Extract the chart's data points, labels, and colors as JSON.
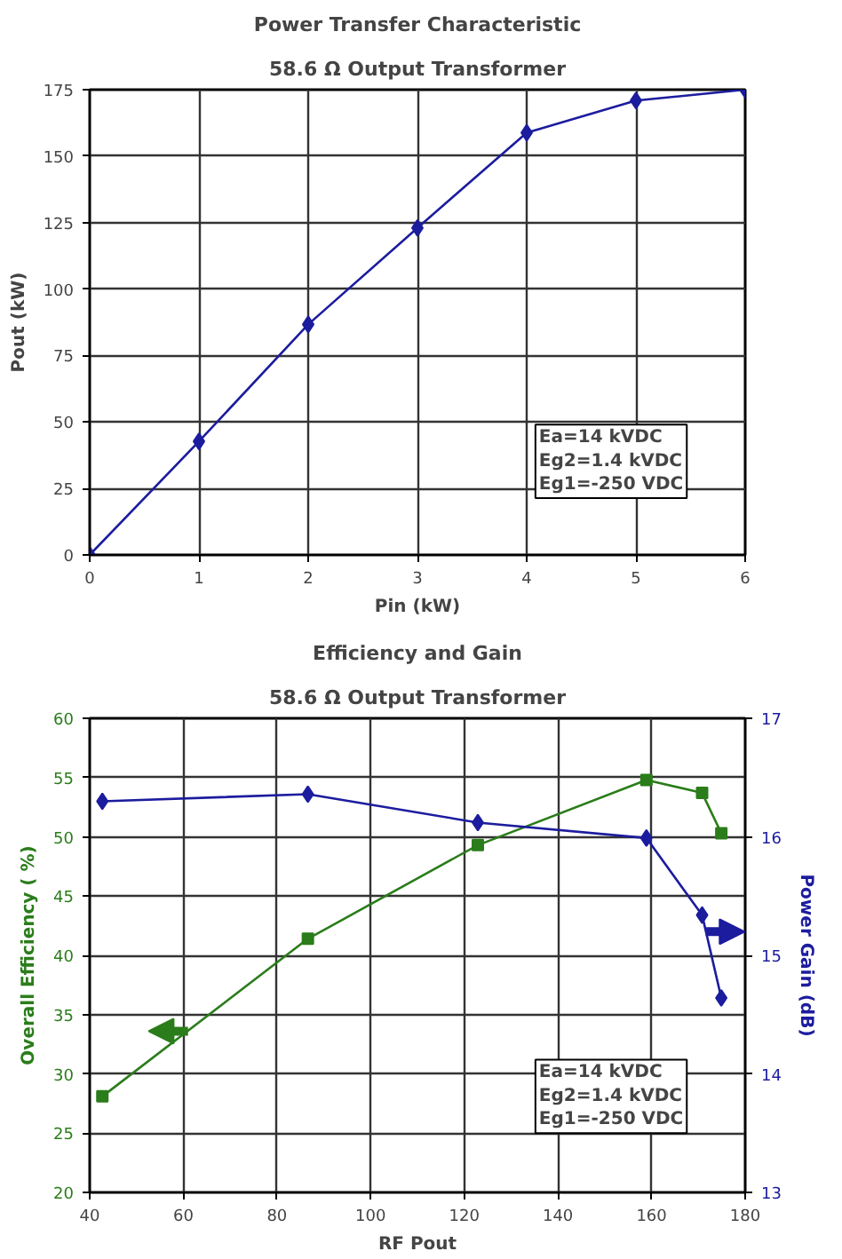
{
  "chart_data": [
    {
      "type": "line",
      "title": "Power Transfer Characteristic",
      "subtitle": "58.6 Ω Output Transformer",
      "xlabel": "Pin (kW)",
      "ylabel": "Pout (kW)",
      "x": [
        0,
        1,
        2,
        3,
        4,
        5,
        6
      ],
      "series": [
        {
          "color": "#1c1c9e",
          "values": [
            0,
            42.7,
            86.7,
            123,
            158.8,
            170.9,
            175
          ]
        }
      ],
      "xlim": [
        0,
        6
      ],
      "xticks": [
        0,
        1,
        2,
        3,
        4,
        5,
        6
      ],
      "ylim": [
        0,
        175
      ],
      "yticks": [
        0,
        25,
        50,
        75,
        100,
        125,
        150,
        175
      ],
      "grid": true,
      "marker": "diamond",
      "line_style": "solid",
      "annotations": [
        "Ea=14 kVDC\nEg2=1.4 kVDC\nEg1=-250 VDC"
      ]
    },
    {
      "type": "line",
      "title": "Efficiency and Gain",
      "subtitle": "58.6 Ω Output Transformer",
      "xlabel": "RF Pout",
      "ylabel": "Overall Efficiency ( %)",
      "y2label": "Power Gain (dB)",
      "x": [
        42.7,
        86.6,
        122.9,
        158.9,
        170.8,
        174.9
      ],
      "series": [
        {
          "color": "#2a7d1a",
          "values": [
            28.1,
            41.4,
            49.3,
            54.8,
            53.7,
            50.3
          ],
          "marker": "square"
        },
        {
          "color": "#1c1c9e",
          "values": [
            16.3,
            16.36,
            16.12,
            15.99,
            15.34,
            14.64
          ],
          "axis": "y2",
          "marker": "diamond"
        }
      ],
      "xlim": [
        40,
        180
      ],
      "xticks": [
        40,
        60,
        80,
        100,
        120,
        140,
        160,
        180
      ],
      "ylim": [
        20,
        60
      ],
      "yticks": [
        20,
        25,
        30,
        35,
        40,
        45,
        50,
        55,
        60
      ],
      "y2lim": [
        13,
        17
      ],
      "y2ticks": [
        13,
        14,
        15,
        16,
        17
      ],
      "grid": true,
      "line_style": "solid",
      "annotations": [
        "Ea=14 kVDC\nEg2=1.4 kVDC\nEg1=-250 VDC"
      ]
    }
  ]
}
